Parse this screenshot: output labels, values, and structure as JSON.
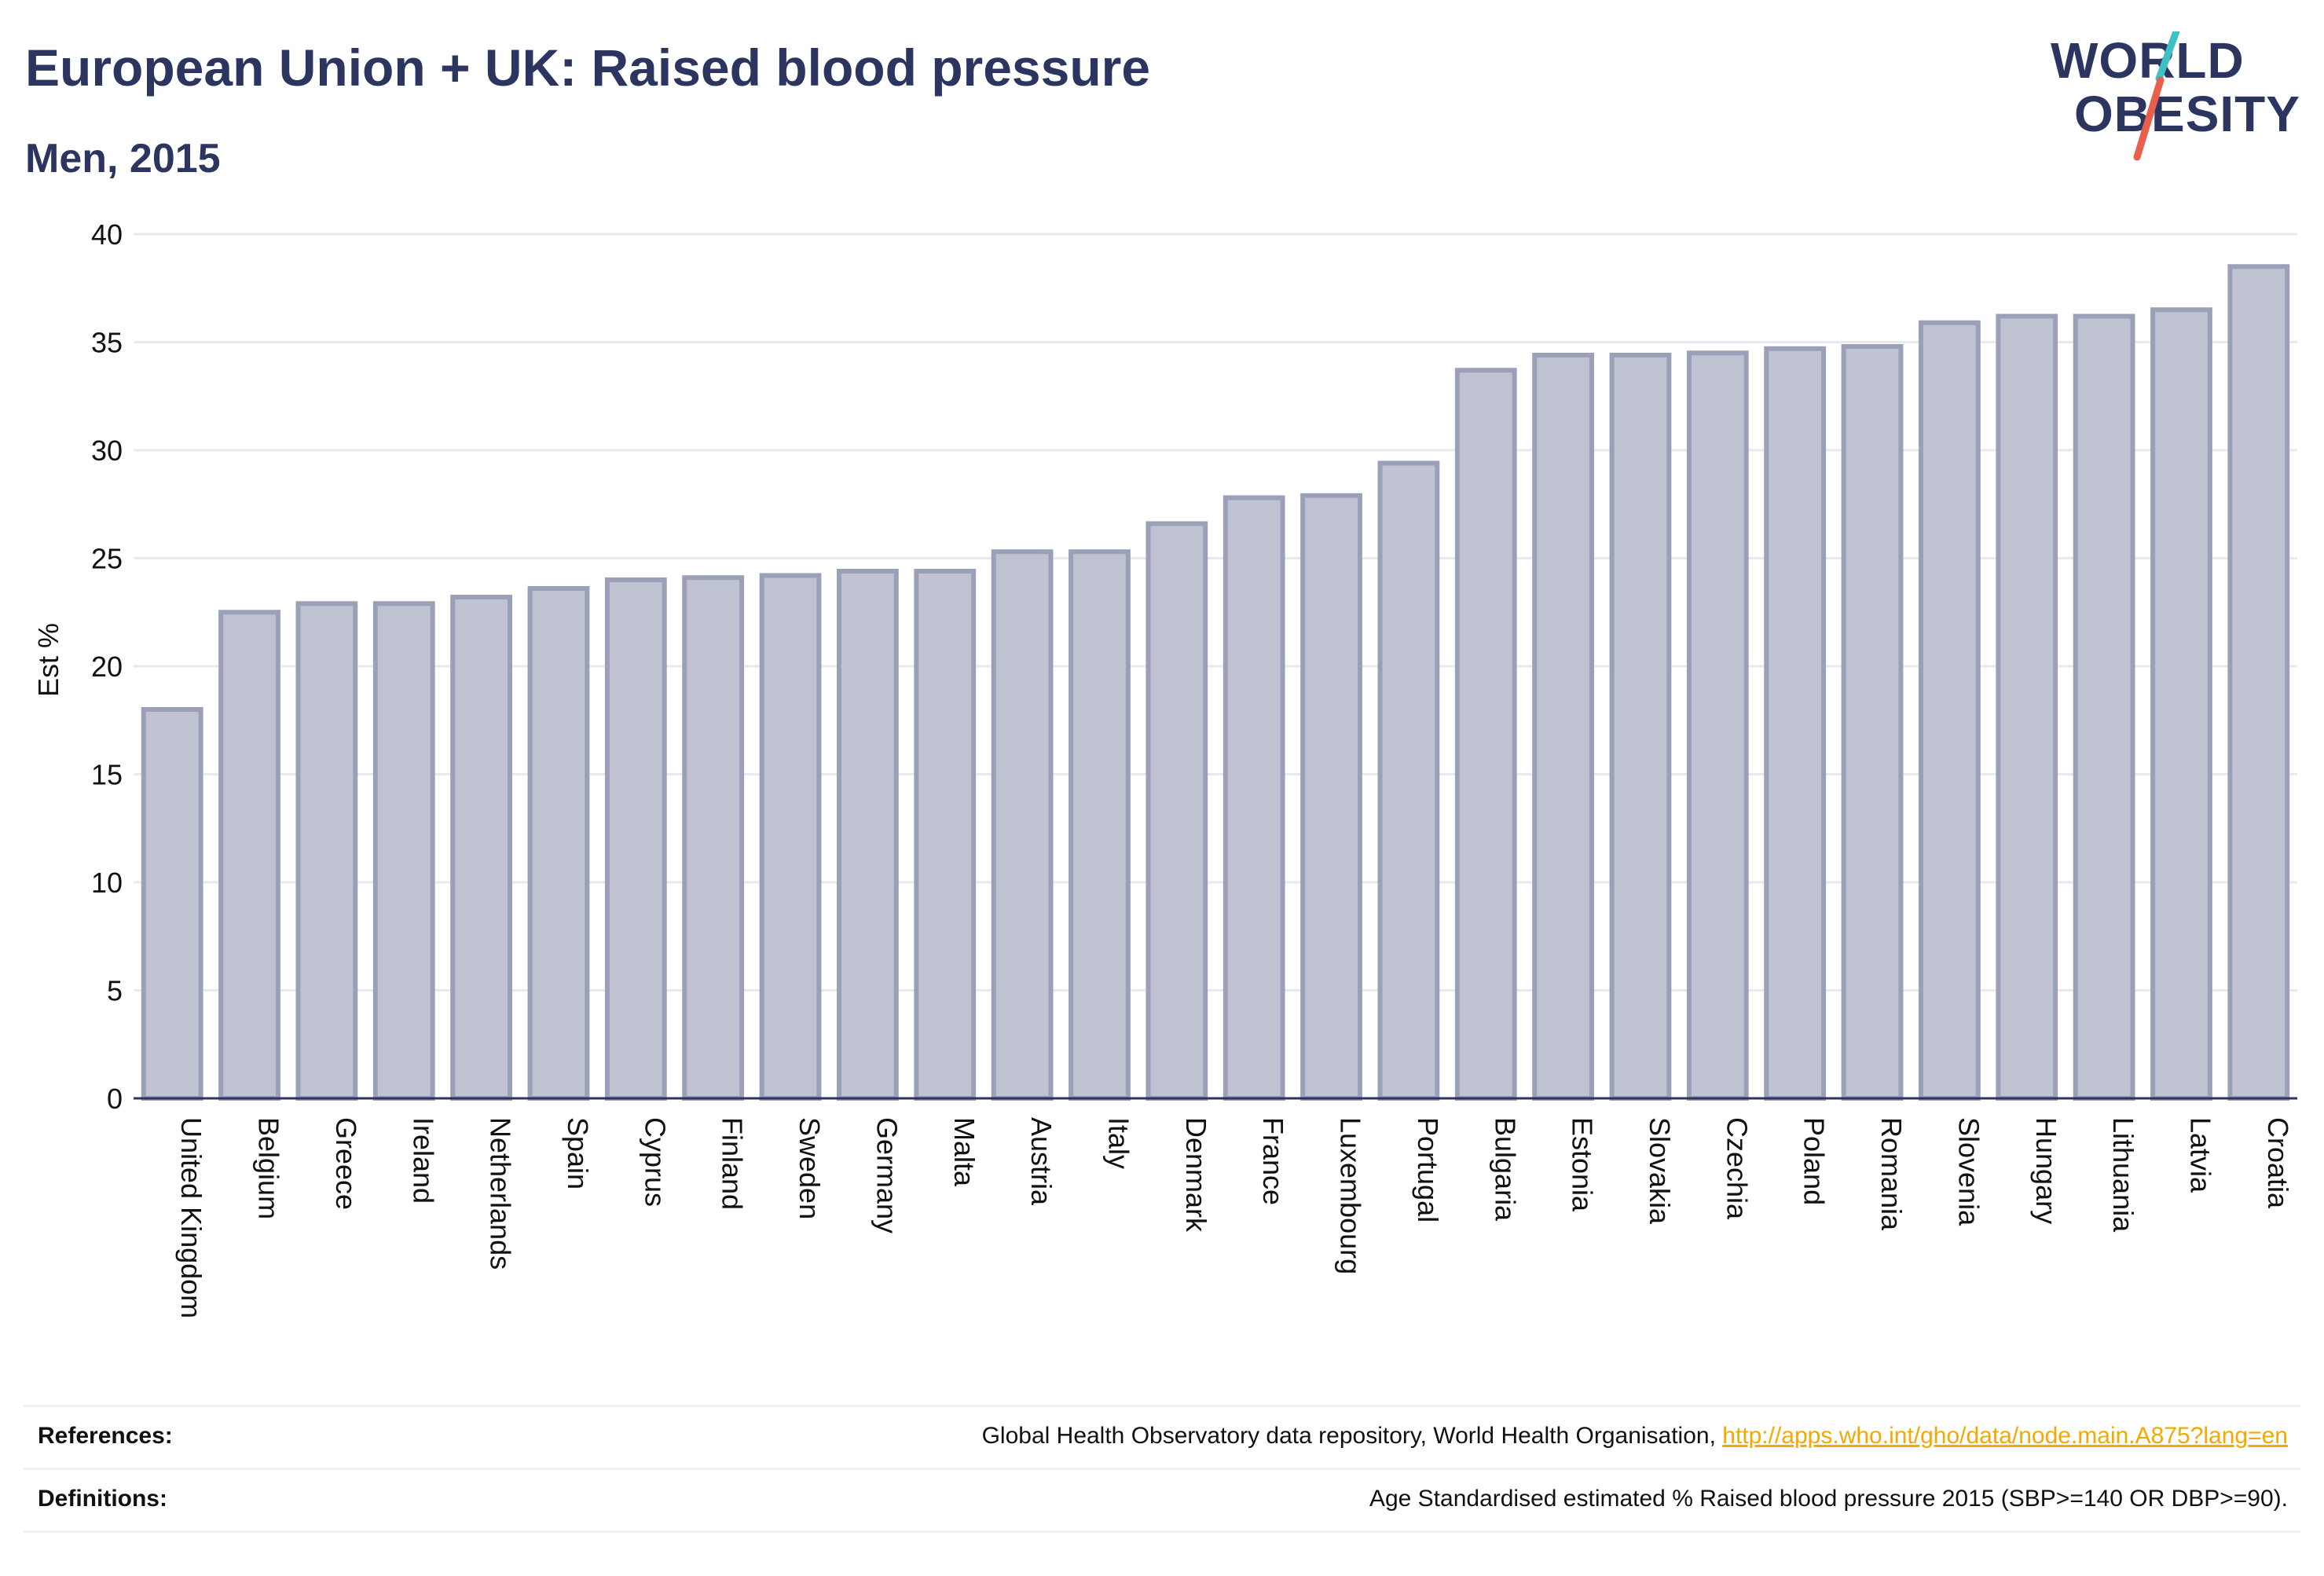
{
  "header": {
    "title": "European Union + UK: Raised blood pressure",
    "subtitle": "Men, 2015"
  },
  "logo": {
    "line1": "WORLD",
    "line2": "OBESITY",
    "accent_colors": [
      "#3ec1c2",
      "#e8604c"
    ]
  },
  "chart_data": {
    "type": "bar",
    "ylabel": "Est %",
    "xlabel": "",
    "ylim": [
      0,
      40
    ],
    "yticks": [
      0,
      5,
      10,
      15,
      20,
      25,
      30,
      35,
      40
    ],
    "grid": true,
    "bar_fill": "#bfc2d0",
    "bar_stroke": "#9aa0b8",
    "categories": [
      "United Kingdom",
      "Belgium",
      "Greece",
      "Ireland",
      "Netherlands",
      "Spain",
      "Cyprus",
      "Finland",
      "Sweden",
      "Germany",
      "Malta",
      "Austria",
      "Italy",
      "Denmark",
      "France",
      "Luxembourg",
      "Portugal",
      "Bulgaria",
      "Estonia",
      "Slovakia",
      "Czechia",
      "Poland",
      "Romania",
      "Slovenia",
      "Hungary",
      "Lithuania",
      "Latvia",
      "Croatia"
    ],
    "values": [
      18.0,
      22.5,
      22.9,
      22.9,
      23.2,
      23.6,
      24.0,
      24.1,
      24.2,
      24.4,
      24.4,
      25.3,
      25.3,
      26.6,
      27.8,
      27.9,
      29.4,
      33.7,
      34.4,
      34.4,
      34.5,
      34.7,
      34.8,
      35.9,
      36.2,
      36.2,
      36.5,
      38.5
    ]
  },
  "footer": {
    "references_label": "References:",
    "references_text": "Global Health Observatory data repository, World Health Organisation, ",
    "references_link": "http://apps.who.int/gho/data/node.main.A875?lang=en",
    "definitions_label": "Definitions:",
    "definitions_text": "Age Standardised estimated % Raised blood pressure 2015 (SBP>=140 OR DBP>=90)."
  }
}
